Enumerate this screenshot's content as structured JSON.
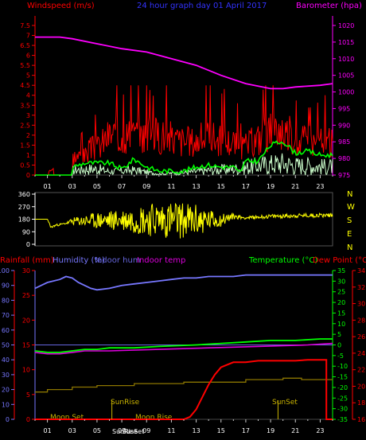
{
  "header": {
    "windspeed_label": "Windspeed (m/s)",
    "graph_title": "24 hour graph day  01 April 2017",
    "barometer_label": "Barometer (hpa)"
  },
  "lower_header": {
    "rainfall": "Rainfall (mm)",
    "humidity": "Humidity (%)",
    "indoor_hum": "Indoor hum",
    "indoor_temp": "Indoor temp",
    "temperature": "Temperature (°C)",
    "dew_point": "Dew Point (°C)"
  },
  "x_tick_labels": [
    "01",
    "03",
    "05",
    "07",
    "09",
    "11",
    "13",
    "15",
    "17",
    "19",
    "21",
    "23"
  ],
  "compass": [
    "N",
    "W",
    "S",
    "E",
    "N"
  ],
  "annotations": {
    "moon_set": "Moon Set",
    "sunrise_label": "SunRise",
    "moon_rise": "Moon Rise",
    "sunset_label": "SunSet",
    "sunrise_axis": "SunRise",
    "sunset_axis": "SunSet"
  },
  "colors": {
    "wind_gust": "#ff0000",
    "wind_avg": "#00ff00",
    "wind_light": "#ccffcc",
    "barometer": "#ff00ff",
    "direction": "#ffff00",
    "humidity": "#7777ff",
    "indoor_hum": "#6666dd",
    "indoor_temp": "#dd00dd",
    "temperature": "#00ff00",
    "dew_point": "#ff0000",
    "rain_rate": "#8b7500",
    "rain_total": "#ff0000"
  },
  "chart_data": [
    {
      "type": "line",
      "title": "24 hour graph day  01 April 2017",
      "x_range_hours": [
        0,
        24
      ],
      "y_left": {
        "label": "Windspeed (m/s)",
        "range": [
          0,
          7.5
        ],
        "ticks": [
          "0",
          "0.5",
          "1",
          "1.5",
          "2",
          "2.5",
          "3",
          "3.5",
          "4",
          "4.5",
          "5",
          "5.5",
          "6",
          "6.5",
          "7",
          "7.5"
        ]
      },
      "y_right": {
        "label": "Barometer (hpa)",
        "range": [
          975,
          1020
        ],
        "ticks": [
          "975",
          "980",
          "985",
          "990",
          "995",
          "1000",
          "1005",
          "1010",
          "1015",
          "1020"
        ]
      },
      "series": [
        {
          "id": "barometer",
          "axis": "right",
          "points": [
            [
              0,
              1016.5
            ],
            [
              2,
              1016.5
            ],
            [
              3,
              1016
            ],
            [
              5,
              1014.5
            ],
            [
              7,
              1013
            ],
            [
              9,
              1012
            ],
            [
              11,
              1010
            ],
            [
              13,
              1008
            ],
            [
              15,
              1005
            ],
            [
              17,
              1002.5
            ],
            [
              19,
              1001
            ],
            [
              20,
              1001
            ],
            [
              21,
              1001.5
            ],
            [
              23,
              1002
            ],
            [
              24,
              1002.5
            ]
          ]
        },
        {
          "id": "wind_gust",
          "axis": "left",
          "style": "spiky",
          "seed": 3,
          "envelope": [
            [
              0,
              0
            ],
            [
              1.1,
              0
            ],
            [
              1.1,
              0.4
            ],
            [
              1.5,
              0.4
            ],
            [
              1.5,
              0
            ],
            [
              3,
              0
            ],
            [
              3,
              1.4
            ],
            [
              4,
              1.4
            ],
            [
              4.5,
              2
            ],
            [
              5,
              2
            ],
            [
              6,
              3
            ],
            [
              7,
              3
            ],
            [
              8,
              3
            ],
            [
              10,
              3
            ],
            [
              12,
              2.5
            ],
            [
              13,
              2.5
            ],
            [
              14,
              3
            ],
            [
              15,
              2.5
            ],
            [
              16,
              2.5
            ],
            [
              16.5,
              1.8
            ],
            [
              17,
              2.2
            ],
            [
              18,
              2.7
            ],
            [
              19,
              3.2
            ],
            [
              20,
              3.4
            ],
            [
              21,
              2.8
            ],
            [
              22,
              2.5
            ],
            [
              23,
              2.4
            ],
            [
              24,
              2.4
            ]
          ]
        },
        {
          "id": "wind_avg",
          "axis": "left",
          "style": "wavy",
          "seed": 9,
          "envelope": [
            [
              0,
              0
            ],
            [
              3,
              0
            ],
            [
              3,
              0.4
            ],
            [
              4,
              0.6
            ],
            [
              5,
              0.6
            ],
            [
              6,
              0.6
            ],
            [
              7,
              0.3
            ],
            [
              8,
              0.8
            ],
            [
              9,
              0.4
            ],
            [
              10,
              0.2
            ],
            [
              12,
              0.2
            ],
            [
              13,
              0.4
            ],
            [
              14,
              0.5
            ],
            [
              15,
              0.4
            ],
            [
              16,
              0.4
            ],
            [
              16.5,
              0.1
            ],
            [
              17,
              0.7
            ],
            [
              18,
              0.7
            ],
            [
              19,
              1.5
            ],
            [
              20,
              1.7
            ],
            [
              21,
              1.1
            ],
            [
              22,
              1.2
            ],
            [
              23,
              1
            ],
            [
              24,
              1
            ]
          ]
        },
        {
          "id": "wind_light",
          "axis": "left",
          "style": "spiky",
          "seed": 17,
          "envelope": [
            [
              0,
              0
            ],
            [
              3,
              0
            ],
            [
              3,
              0.4
            ],
            [
              4,
              0.5
            ],
            [
              5,
              0.5
            ],
            [
              6,
              0.3
            ],
            [
              8,
              0.4
            ],
            [
              10,
              0.1
            ],
            [
              12,
              0.2
            ],
            [
              14,
              0.4
            ],
            [
              16,
              0.5
            ],
            [
              17,
              0.6
            ],
            [
              18,
              0.8
            ],
            [
              19,
              0.9
            ],
            [
              20,
              1
            ],
            [
              21,
              0.8
            ],
            [
              22,
              0.8
            ],
            [
              23,
              0.7
            ],
            [
              24,
              0.7
            ]
          ]
        }
      ]
    },
    {
      "type": "scatter",
      "y_range": [
        0,
        360
      ],
      "y_ticks": [
        "0",
        "90",
        "180",
        "270",
        "360"
      ],
      "series": [
        {
          "id": "wind_direction",
          "seed": 23,
          "center": [
            [
              0,
              180
            ],
            [
              1,
              180
            ],
            [
              1.3,
              120
            ],
            [
              1.6,
              135
            ],
            [
              2.5,
              150
            ],
            [
              3,
              165
            ],
            [
              5,
              170
            ],
            [
              7,
              175
            ],
            [
              9,
              180
            ],
            [
              11,
              175
            ],
            [
              13,
              170
            ],
            [
              15,
              175
            ],
            [
              16,
              200
            ],
            [
              17,
              190
            ],
            [
              19,
              200
            ],
            [
              21,
              205
            ],
            [
              24,
              210
            ]
          ],
          "spread": [
            [
              0,
              0
            ],
            [
              1,
              0
            ],
            [
              1.3,
              10
            ],
            [
              2.5,
              5
            ],
            [
              3,
              25
            ],
            [
              5,
              60
            ],
            [
              7,
              80
            ],
            [
              9,
              120
            ],
            [
              11,
              140
            ],
            [
              13,
              120
            ],
            [
              14,
              80
            ],
            [
              15,
              50
            ],
            [
              16,
              20
            ],
            [
              17,
              10
            ],
            [
              19,
              15
            ],
            [
              22,
              15
            ],
            [
              24,
              15
            ]
          ]
        }
      ]
    },
    {
      "type": "line",
      "x_range_hours": [
        0,
        24
      ],
      "y_left": {
        "label": "Rainfall (mm)",
        "range": [
          0,
          30
        ],
        "ticks": [
          "0",
          "5",
          "10",
          "15",
          "20",
          "25",
          "30"
        ]
      },
      "y_humidity": {
        "label": "Humidity (%)",
        "range": [
          0,
          100
        ],
        "ticks": [
          "0",
          "10",
          "20",
          "30",
          "40",
          "50",
          "60",
          "70",
          "80",
          "90",
          "100"
        ]
      },
      "y_temp": {
        "label": "Temperature (°C)",
        "range": [
          -35,
          35
        ],
        "ticks": [
          "-35",
          "-30",
          "-25",
          "-20",
          "-15",
          "-10",
          "-5",
          "0",
          "5",
          "10",
          "15",
          "20",
          "25",
          "30",
          "35"
        ]
      },
      "y_dew": {
        "label": "Dew Point (°C)",
        "range": [
          16,
          34
        ],
        "ticks": [
          "16",
          "18",
          "20",
          "22",
          "24",
          "26",
          "28",
          "30",
          "32",
          "34"
        ]
      },
      "series": [
        {
          "id": "humidity",
          "axis": "humidity",
          "points": [
            [
              0,
              88
            ],
            [
              0.5,
              90
            ],
            [
              1,
              92
            ],
            [
              2,
              94
            ],
            [
              2.5,
              96
            ],
            [
              3,
              95
            ],
            [
              3.5,
              92
            ],
            [
              4,
              90
            ],
            [
              4.5,
              88
            ],
            [
              5,
              87
            ],
            [
              6,
              88
            ],
            [
              7,
              90
            ],
            [
              8,
              91
            ],
            [
              9,
              92
            ],
            [
              10,
              93
            ],
            [
              11,
              94
            ],
            [
              12,
              95
            ],
            [
              13,
              95
            ],
            [
              14,
              96
            ],
            [
              15,
              96
            ],
            [
              16,
              96
            ],
            [
              17,
              97
            ],
            [
              18,
              97
            ],
            [
              24,
              97
            ]
          ]
        },
        {
          "id": "indoor_hum",
          "axis": "humidity",
          "points": [
            [
              0,
              50
            ],
            [
              24,
              50
            ]
          ]
        },
        {
          "id": "indoor_temp",
          "axis": "humidity",
          "points": [
            [
              0,
              47
            ],
            [
              3,
              47
            ],
            [
              4,
              48
            ],
            [
              6,
              48
            ],
            [
              10,
              49
            ],
            [
              14,
              49
            ],
            [
              18,
              50
            ],
            [
              24,
              51
            ]
          ]
        },
        {
          "id": "temperature",
          "axis": "humidity",
          "points": [
            [
              0,
              46
            ],
            [
              1,
              45
            ],
            [
              2,
              45
            ],
            [
              3,
              46
            ],
            [
              4,
              47
            ],
            [
              5,
              47
            ],
            [
              6,
              48
            ],
            [
              8,
              48
            ],
            [
              10,
              49
            ],
            [
              13,
              50
            ],
            [
              15,
              51
            ],
            [
              17,
              52
            ],
            [
              19,
              53
            ],
            [
              21,
              53
            ],
            [
              23,
              54
            ],
            [
              24,
              54
            ]
          ]
        },
        {
          "id": "dew_point",
          "axis": "humidity",
          "points": [
            [
              0,
              45
            ],
            [
              1,
              44
            ],
            [
              2,
              44
            ],
            [
              3,
              45
            ],
            [
              4,
              46
            ],
            [
              6,
              46
            ],
            [
              10,
              47
            ],
            [
              14,
              48
            ],
            [
              18,
              49
            ],
            [
              22,
              50
            ],
            [
              24,
              51
            ]
          ]
        },
        {
          "id": "rain_rate",
          "axis": "left",
          "points": [
            [
              0,
              5.5
            ],
            [
              1,
              5.5
            ],
            [
              1,
              6
            ],
            [
              3,
              6
            ],
            [
              3,
              6.5
            ],
            [
              5,
              6.5
            ],
            [
              5,
              6.8
            ],
            [
              8,
              6.8
            ],
            [
              8,
              7.2
            ],
            [
              12,
              7.2
            ],
            [
              12,
              7.5
            ],
            [
              17,
              7.5
            ],
            [
              17,
              8
            ],
            [
              20,
              8
            ],
            [
              20,
              8.3
            ],
            [
              21.5,
              8.3
            ],
            [
              21.5,
              8
            ],
            [
              24,
              8
            ]
          ]
        },
        {
          "id": "rain_total",
          "axis": "left",
          "points": [
            [
              0,
              0
            ],
            [
              12,
              0
            ],
            [
              12.5,
              0.5
            ],
            [
              13,
              2
            ],
            [
              13.5,
              4.5
            ],
            [
              14,
              7
            ],
            [
              14.5,
              9
            ],
            [
              15,
              10.5
            ],
            [
              15.5,
              11
            ],
            [
              16,
              11.5
            ],
            [
              17,
              11.5
            ],
            [
              18,
              11.8
            ],
            [
              20,
              11.8
            ],
            [
              21,
              11.8
            ],
            [
              22,
              12
            ],
            [
              23.5,
              12
            ],
            [
              23.5,
              0
            ],
            [
              24,
              0
            ]
          ]
        }
      ]
    }
  ]
}
